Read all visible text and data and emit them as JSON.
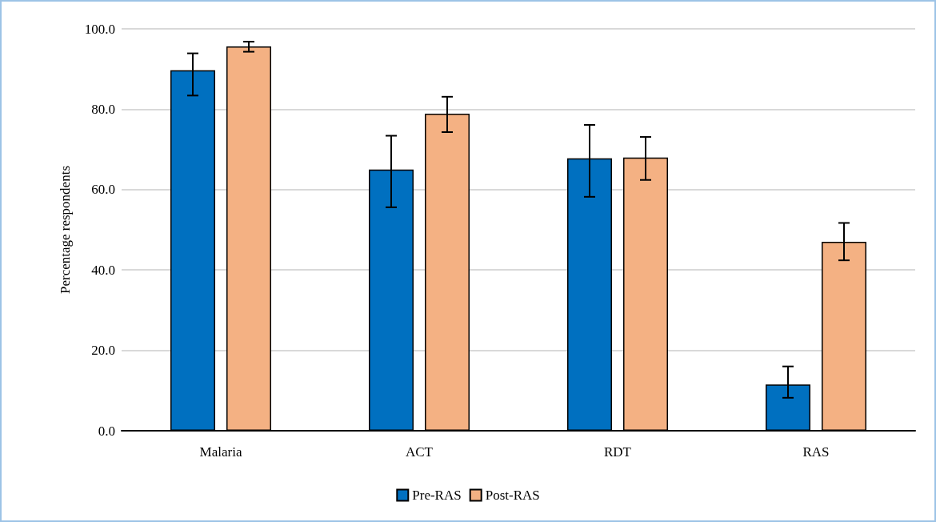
{
  "chart_data": {
    "type": "bar",
    "ylabel": "Percentage respondents",
    "categories": [
      "Malaria",
      "ACT",
      "RDT",
      "RAS"
    ],
    "series": [
      {
        "name": "Pre-RAS",
        "color": "#0070c0",
        "values": [
          89.7,
          65.0,
          67.8,
          11.5
        ],
        "errors": [
          [
            83.4,
            93.9
          ],
          [
            55.6,
            73.4
          ],
          [
            58.2,
            76.1
          ],
          [
            8.2,
            16.0
          ]
        ]
      },
      {
        "name": "Post-RAS",
        "color": "#f4b183",
        "values": [
          95.6,
          78.9,
          68.0,
          47.0
        ],
        "errors": [
          [
            94.3,
            96.8
          ],
          [
            74.3,
            83.1
          ],
          [
            62.4,
            73.1
          ],
          [
            42.4,
            51.7
          ]
        ]
      }
    ],
    "ylim": [
      0,
      100
    ],
    "yticks": [
      {
        "value": 0,
        "label": "0.0"
      },
      {
        "value": 20,
        "label": "20.0"
      },
      {
        "value": 40,
        "label": "40.0"
      },
      {
        "value": 60,
        "label": "60.0"
      },
      {
        "value": 80,
        "label": "80.0"
      },
      {
        "value": 100,
        "label": "100.0"
      }
    ],
    "grid": "y",
    "legend": "bottom"
  }
}
